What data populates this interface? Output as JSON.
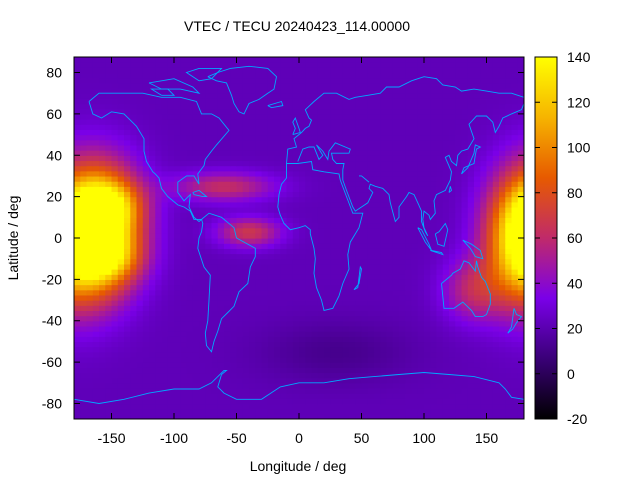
{
  "chart_data": {
    "type": "heatmap",
    "title": "VTEC / TECU 20240423_114.00000",
    "xlabel": "Longitude / deg",
    "ylabel": "Latitude / deg",
    "xlim": [
      -180,
      180
    ],
    "ylim": [
      -87.5,
      87.5
    ],
    "x_ticks": [
      -150,
      -100,
      -50,
      0,
      50,
      100,
      150
    ],
    "y_ticks": [
      -80,
      -60,
      -40,
      -20,
      0,
      20,
      40,
      60,
      80
    ],
    "colorbar": {
      "range": [
        -20,
        140
      ],
      "ticks": [
        -20,
        0,
        20,
        40,
        60,
        80,
        100,
        120,
        140
      ],
      "palette": [
        "#000000",
        "#3a0077",
        "#7a00e8",
        "#c02a6a",
        "#e75a00",
        "#f6b400",
        "#ffff00"
      ]
    },
    "background_value": 22,
    "features": [
      {
        "name": "Pacific anomaly (west)",
        "lon": -155,
        "lat": 5,
        "peak_tecu": 115,
        "lon_halfwidth": 30,
        "lat_halfwidth": 28
      },
      {
        "name": "Pacific anomaly north crest",
        "lon": -150,
        "lat": 17,
        "peak_tecu": 30,
        "lon_halfwidth": 25,
        "lat_halfwidth": 10
      },
      {
        "name": "Pacific anomaly south crest",
        "lon": -150,
        "lat": -10,
        "peak_tecu": 25,
        "lon_halfwidth": 25,
        "lat_halfwidth": 10
      },
      {
        "name": "Pacific anomaly (east wrap)",
        "lon": 180,
        "lat": 0,
        "peak_tecu": 115,
        "lon_halfwidth": 30,
        "lat_halfwidth": 30
      },
      {
        "name": "Atlantic tongue",
        "lon": -40,
        "lat": 3,
        "peak_tecu": 45,
        "lon_halfwidth": 25,
        "lat_halfwidth": 7
      },
      {
        "name": "North Atlantic band",
        "lon": -60,
        "lat": 25,
        "peak_tecu": 40,
        "lon_halfwidth": 40,
        "lat_halfwidth": 7
      },
      {
        "name": "Australia bulge",
        "lon": 140,
        "lat": -25,
        "peak_tecu": 35,
        "lon_halfwidth": 25,
        "lat_halfwidth": 15
      },
      {
        "name": "Southern ocean depletion",
        "lon": 30,
        "lat": -55,
        "peak_tecu": -10,
        "lon_halfwidth": 60,
        "lat_halfwidth": 15
      }
    ],
    "grid": false,
    "legend": "colorbar-right",
    "overlay": "coastlines"
  }
}
